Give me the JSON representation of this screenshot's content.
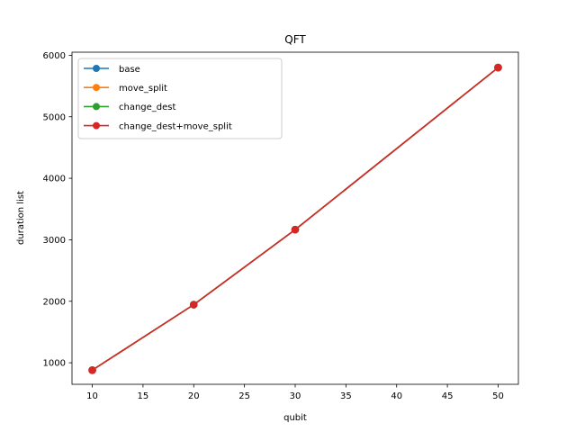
{
  "chart_data": {
    "type": "line",
    "title": "QFT",
    "xlabel": "qubit",
    "ylabel": "duration list",
    "x": [
      10,
      20,
      30,
      50
    ],
    "xlim": [
      8,
      52
    ],
    "ylim": [
      650,
      6050
    ],
    "xticks": [
      10,
      15,
      20,
      25,
      30,
      35,
      40,
      45,
      50
    ],
    "yticks": [
      1000,
      2000,
      3000,
      4000,
      5000,
      6000
    ],
    "grid": false,
    "legend_position": "top-left",
    "markers": "circle",
    "series": [
      {
        "name": "base",
        "color": "#1f77b4",
        "values": [
          880,
          1945,
          3165,
          5800
        ]
      },
      {
        "name": "move_split",
        "color": "#ff7f0e",
        "values": [
          880,
          1945,
          3165,
          5800
        ]
      },
      {
        "name": "change_dest",
        "color": "#2ca02c",
        "values": [
          880,
          1945,
          3165,
          5800
        ]
      },
      {
        "name": "change_dest+move_split",
        "color": "#d62728",
        "values": [
          880,
          1945,
          3165,
          5800
        ]
      }
    ]
  }
}
